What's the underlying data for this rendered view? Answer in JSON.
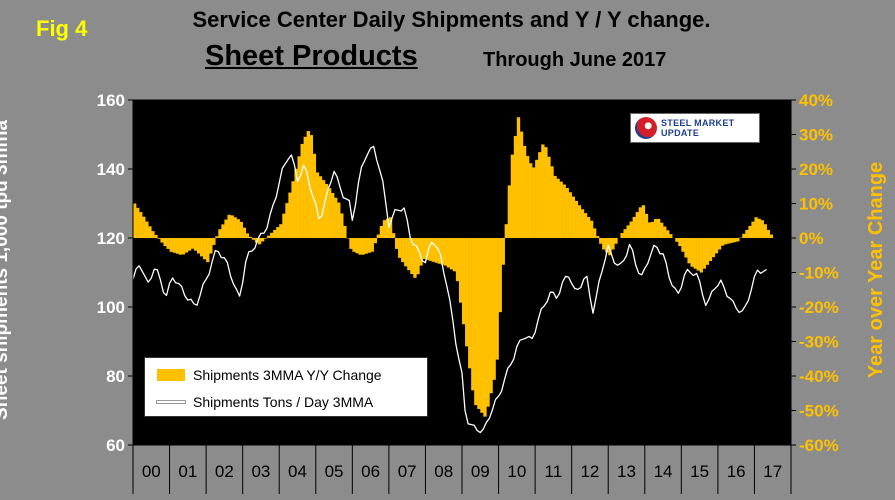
{
  "header": {
    "fig_label": "Fig 4",
    "title": "Service Center Daily Shipments and Y / Y change.",
    "subtitle": "Sheet Products",
    "through": "Through June 2017"
  },
  "logo": {
    "text": "STEEL MARKET UPDATE",
    "mark_colors": [
      "#d31f2a",
      "#1d3f8f"
    ]
  },
  "colors": {
    "plot_bg": "#000000",
    "page_bg": "#8c8c8c",
    "bars": "#ffc000",
    "line": "#ffffff",
    "right_axis": "#ffc000"
  },
  "chart_data": {
    "type": "bar+line",
    "title": "Service Center Daily Shipments and Y / Y change.",
    "ylabel_left": "Sheet shipments 1,000 tpd 3mma",
    "ylabel_right": "Year over Year Change",
    "ylim_left": [
      60,
      160
    ],
    "ylim_right": [
      -60,
      40
    ],
    "yticks_left": [
      "60",
      "80",
      "100",
      "120",
      "140",
      "160"
    ],
    "yticks_right": [
      "-60%",
      "-50%",
      "-40%",
      "-30%",
      "-20%",
      "-10%",
      "0%",
      "10%",
      "20%",
      "30%",
      "40%"
    ],
    "x_categories": [
      "00",
      "01",
      "02",
      "03",
      "04",
      "05",
      "06",
      "07",
      "08",
      "09",
      "10",
      "11",
      "12",
      "13",
      "14",
      "15",
      "16",
      "17"
    ],
    "legend": [
      "Shipments 3MMA Y/Y Change",
      "Shipments Tons / Day 3MMA"
    ],
    "grid": false,
    "series": [
      {
        "name": "Shipments 3MMA Y/Y Change",
        "type": "bar",
        "axis": "right",
        "knots": [
          [
            2000.0,
            10
          ],
          [
            2000.2,
            7
          ],
          [
            2000.5,
            2
          ],
          [
            2000.8,
            -2
          ],
          [
            2001.0,
            -4
          ],
          [
            2001.3,
            -5
          ],
          [
            2001.6,
            -3
          ],
          [
            2002.0,
            -7
          ],
          [
            2002.3,
            2
          ],
          [
            2002.6,
            7
          ],
          [
            2002.9,
            5
          ],
          [
            2003.1,
            1
          ],
          [
            2003.4,
            -2
          ],
          [
            2003.7,
            1
          ],
          [
            2004.0,
            4
          ],
          [
            2004.3,
            15
          ],
          [
            2004.6,
            28
          ],
          [
            2004.8,
            32
          ],
          [
            2005.0,
            19
          ],
          [
            2005.3,
            15
          ],
          [
            2005.6,
            10
          ],
          [
            2005.9,
            -3
          ],
          [
            2006.0,
            -4
          ],
          [
            2006.2,
            -5
          ],
          [
            2006.5,
            -4
          ],
          [
            2006.8,
            5
          ],
          [
            2007.0,
            6
          ],
          [
            2007.2,
            -5
          ],
          [
            2007.4,
            -8
          ],
          [
            2007.7,
            -12
          ],
          [
            2007.9,
            -6
          ],
          [
            2008.2,
            -7
          ],
          [
            2008.5,
            -8
          ],
          [
            2008.8,
            -10
          ],
          [
            2009.0,
            -25
          ],
          [
            2009.3,
            -48
          ],
          [
            2009.6,
            -52
          ],
          [
            2009.9,
            -38
          ],
          [
            2010.1,
            -5
          ],
          [
            2010.3,
            22
          ],
          [
            2010.5,
            35
          ],
          [
            2010.7,
            25
          ],
          [
            2010.9,
            20
          ],
          [
            2011.2,
            28
          ],
          [
            2011.5,
            18
          ],
          [
            2011.8,
            15
          ],
          [
            2012.0,
            12
          ],
          [
            2012.2,
            9
          ],
          [
            2012.5,
            5
          ],
          [
            2012.8,
            -3
          ],
          [
            2013.0,
            -5
          ],
          [
            2013.3,
            1
          ],
          [
            2013.6,
            5
          ],
          [
            2013.9,
            10
          ],
          [
            2014.1,
            4
          ],
          [
            2014.3,
            6
          ],
          [
            2014.6,
            2
          ],
          [
            2014.9,
            -2
          ],
          [
            2015.2,
            -8
          ],
          [
            2015.5,
            -10
          ],
          [
            2015.8,
            -6
          ],
          [
            2016.1,
            -2
          ],
          [
            2016.5,
            -1
          ],
          [
            2016.8,
            3
          ],
          [
            2017.0,
            6
          ],
          [
            2017.2,
            5
          ],
          [
            2017.4,
            1
          ]
        ]
      },
      {
        "name": "Shipments Tons / Day 3MMA",
        "type": "line",
        "axis": "left",
        "knots": [
          [
            2000.0,
            108
          ],
          [
            2000.2,
            113
          ],
          [
            2000.4,
            106
          ],
          [
            2000.6,
            112
          ],
          [
            2000.9,
            103
          ],
          [
            2001.1,
            109
          ],
          [
            2001.4,
            104
          ],
          [
            2001.7,
            100
          ],
          [
            2002.0,
            108
          ],
          [
            2002.3,
            117
          ],
          [
            2002.6,
            112
          ],
          [
            2002.9,
            102
          ],
          [
            2003.1,
            114
          ],
          [
            2003.4,
            119
          ],
          [
            2003.7,
            124
          ],
          [
            2003.9,
            132
          ],
          [
            2004.1,
            140
          ],
          [
            2004.3,
            145
          ],
          [
            2004.5,
            137
          ],
          [
            2004.7,
            141
          ],
          [
            2004.9,
            133
          ],
          [
            2005.1,
            125
          ],
          [
            2005.3,
            132
          ],
          [
            2005.5,
            140
          ],
          [
            2005.7,
            133
          ],
          [
            2005.9,
            131
          ],
          [
            2006.0,
            125
          ],
          [
            2006.2,
            138
          ],
          [
            2006.4,
            145
          ],
          [
            2006.6,
            146
          ],
          [
            2006.8,
            138
          ],
          [
            2007.0,
            124
          ],
          [
            2007.2,
            128
          ],
          [
            2007.4,
            129
          ],
          [
            2007.6,
            120
          ],
          [
            2007.8,
            116
          ],
          [
            2008.0,
            113
          ],
          [
            2008.2,
            120
          ],
          [
            2008.4,
            115
          ],
          [
            2008.6,
            106
          ],
          [
            2008.8,
            92
          ],
          [
            2009.0,
            80
          ],
          [
            2009.1,
            68
          ],
          [
            2009.3,
            65
          ],
          [
            2009.6,
            64
          ],
          [
            2009.8,
            70
          ],
          [
            2010.0,
            74
          ],
          [
            2010.2,
            80
          ],
          [
            2010.5,
            88
          ],
          [
            2010.7,
            92
          ],
          [
            2010.9,
            90
          ],
          [
            2011.1,
            97
          ],
          [
            2011.4,
            104
          ],
          [
            2011.6,
            103
          ],
          [
            2011.9,
            110
          ],
          [
            2012.1,
            104
          ],
          [
            2012.4,
            109
          ],
          [
            2012.6,
            98
          ],
          [
            2012.8,
            110
          ],
          [
            2013.0,
            117
          ],
          [
            2013.3,
            111
          ],
          [
            2013.6,
            118
          ],
          [
            2013.9,
            108
          ],
          [
            2014.1,
            114
          ],
          [
            2014.3,
            118
          ],
          [
            2014.5,
            115
          ],
          [
            2014.7,
            108
          ],
          [
            2014.9,
            103
          ],
          [
            2015.1,
            110
          ],
          [
            2015.4,
            110
          ],
          [
            2015.7,
            100
          ],
          [
            2015.9,
            106
          ],
          [
            2016.1,
            107
          ],
          [
            2016.4,
            101
          ],
          [
            2016.7,
            98
          ],
          [
            2016.9,
            105
          ],
          [
            2017.1,
            111
          ],
          [
            2017.3,
            110
          ]
        ]
      }
    ]
  }
}
